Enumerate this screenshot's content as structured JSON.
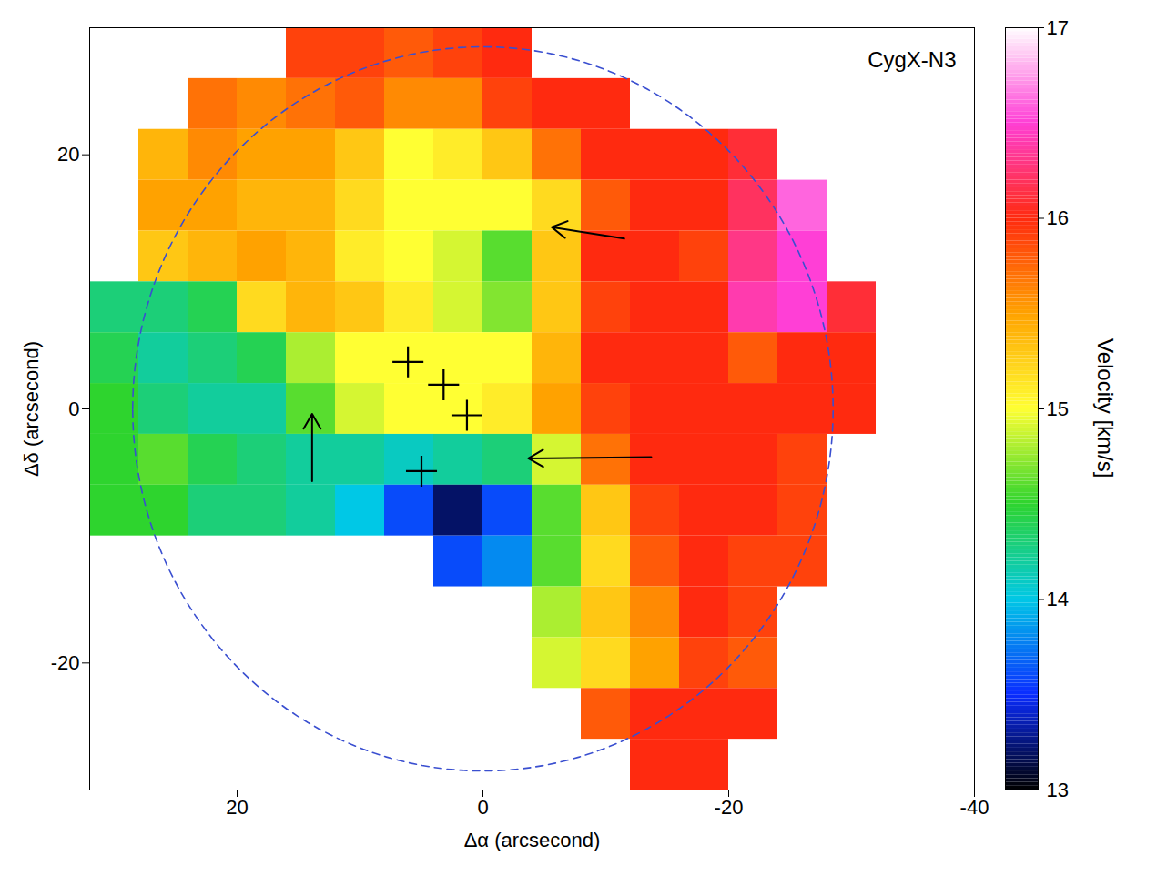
{
  "chart_data": {
    "type": "heatmap",
    "title": "CygX-N3",
    "xlabel": "Δα (arcsecond)",
    "ylabel": "Δδ (arcsecond)",
    "xlim": [
      32,
      -40
    ],
    "ylim": [
      -30,
      30
    ],
    "xticks": [
      20,
      0,
      -20,
      -40
    ],
    "yticks": [
      -20,
      0,
      20
    ],
    "x": [
      30,
      26,
      22,
      18,
      14,
      10,
      6,
      2,
      -2,
      -6,
      -10,
      -14,
      -18,
      -22,
      -26,
      -30,
      -34
    ],
    "y": [
      28,
      24,
      20,
      16,
      12,
      8,
      4,
      0,
      -4,
      -8,
      -12,
      -16,
      -20,
      -24,
      -28
    ],
    "cells": [
      [
        null,
        null,
        null,
        null,
        15.9,
        15.9,
        15.8,
        15.9,
        16.0,
        null,
        null,
        null,
        null,
        null,
        null,
        null,
        null
      ],
      [
        null,
        null,
        15.7,
        15.6,
        15.7,
        15.8,
        15.6,
        15.6,
        15.9,
        16.0,
        16.0,
        null,
        null,
        null,
        null,
        null,
        null
      ],
      [
        null,
        15.4,
        15.6,
        15.5,
        15.5,
        15.3,
        15.0,
        15.1,
        15.3,
        15.7,
        16.0,
        16.0,
        16.0,
        16.1,
        null,
        null,
        null
      ],
      [
        null,
        15.5,
        15.5,
        15.4,
        15.4,
        15.2,
        15.0,
        15.0,
        15.0,
        15.2,
        15.8,
        16.0,
        16.0,
        16.2,
        16.6,
        null,
        null
      ],
      [
        null,
        15.3,
        15.4,
        15.5,
        15.4,
        15.1,
        15.0,
        14.9,
        14.6,
        15.3,
        16.0,
        16.0,
        15.9,
        16.3,
        16.5,
        null,
        null
      ],
      [
        14.3,
        14.3,
        14.4,
        15.2,
        15.4,
        15.3,
        15.1,
        14.9,
        14.7,
        15.3,
        15.9,
        16.0,
        16.0,
        16.4,
        16.5,
        16.1,
        null
      ],
      [
        14.4,
        14.2,
        14.3,
        14.4,
        14.8,
        15.0,
        15.0,
        15.0,
        15.0,
        15.4,
        16.0,
        16.0,
        16.0,
        15.8,
        16.0,
        16.0,
        null
      ],
      [
        14.5,
        14.3,
        14.2,
        14.2,
        14.6,
        14.9,
        15.0,
        15.0,
        15.1,
        15.5,
        15.9,
        16.0,
        16.0,
        16.0,
        16.0,
        16.0,
        null
      ],
      [
        14.5,
        14.6,
        14.4,
        14.3,
        14.2,
        14.2,
        14.1,
        14.2,
        14.3,
        14.9,
        15.7,
        16.0,
        16.0,
        16.0,
        15.9,
        null,
        null
      ],
      [
        14.5,
        14.5,
        14.3,
        14.3,
        14.2,
        14.0,
        13.6,
        13.2,
        13.6,
        14.6,
        15.3,
        15.9,
        16.0,
        16.0,
        15.9,
        null,
        null
      ],
      [
        null,
        null,
        null,
        null,
        null,
        null,
        null,
        13.6,
        13.8,
        14.6,
        15.2,
        15.8,
        16.0,
        15.9,
        15.9,
        null,
        null
      ],
      [
        null,
        null,
        null,
        null,
        null,
        null,
        null,
        null,
        null,
        14.8,
        15.3,
        15.6,
        16.0,
        15.9,
        null,
        null,
        null
      ],
      [
        null,
        null,
        null,
        null,
        null,
        null,
        null,
        null,
        null,
        14.9,
        15.2,
        15.5,
        15.9,
        15.8,
        null,
        null,
        null
      ],
      [
        null,
        null,
        null,
        null,
        null,
        null,
        null,
        null,
        null,
        null,
        15.8,
        16.0,
        16.0,
        16.0,
        null,
        null,
        null
      ],
      [
        null,
        null,
        null,
        null,
        null,
        null,
        null,
        null,
        null,
        null,
        null,
        16.0,
        16.0,
        null,
        null,
        null,
        null
      ]
    ],
    "colorbar": {
      "label": "Velocity [km/s]",
      "range": [
        13,
        17
      ],
      "ticks": [
        13,
        14,
        15,
        16,
        17
      ]
    },
    "markers": {
      "marker": "plus",
      "x": [
        6.1,
        3.2,
        1.3,
        5.0
      ],
      "y": [
        3.7,
        1.9,
        -0.5,
        -4.9
      ]
    },
    "arrows": [
      {
        "x1": -11.5,
        "y1": 13.4,
        "x2": -5.6,
        "y2": 14.3
      },
      {
        "x1": -13.7,
        "y1": -3.8,
        "x2": -3.7,
        "y2": -3.9
      },
      {
        "x1": 13.9,
        "y1": -5.7,
        "x2": 13.9,
        "y2": -0.4
      }
    ],
    "beam_radius": 28.5
  }
}
